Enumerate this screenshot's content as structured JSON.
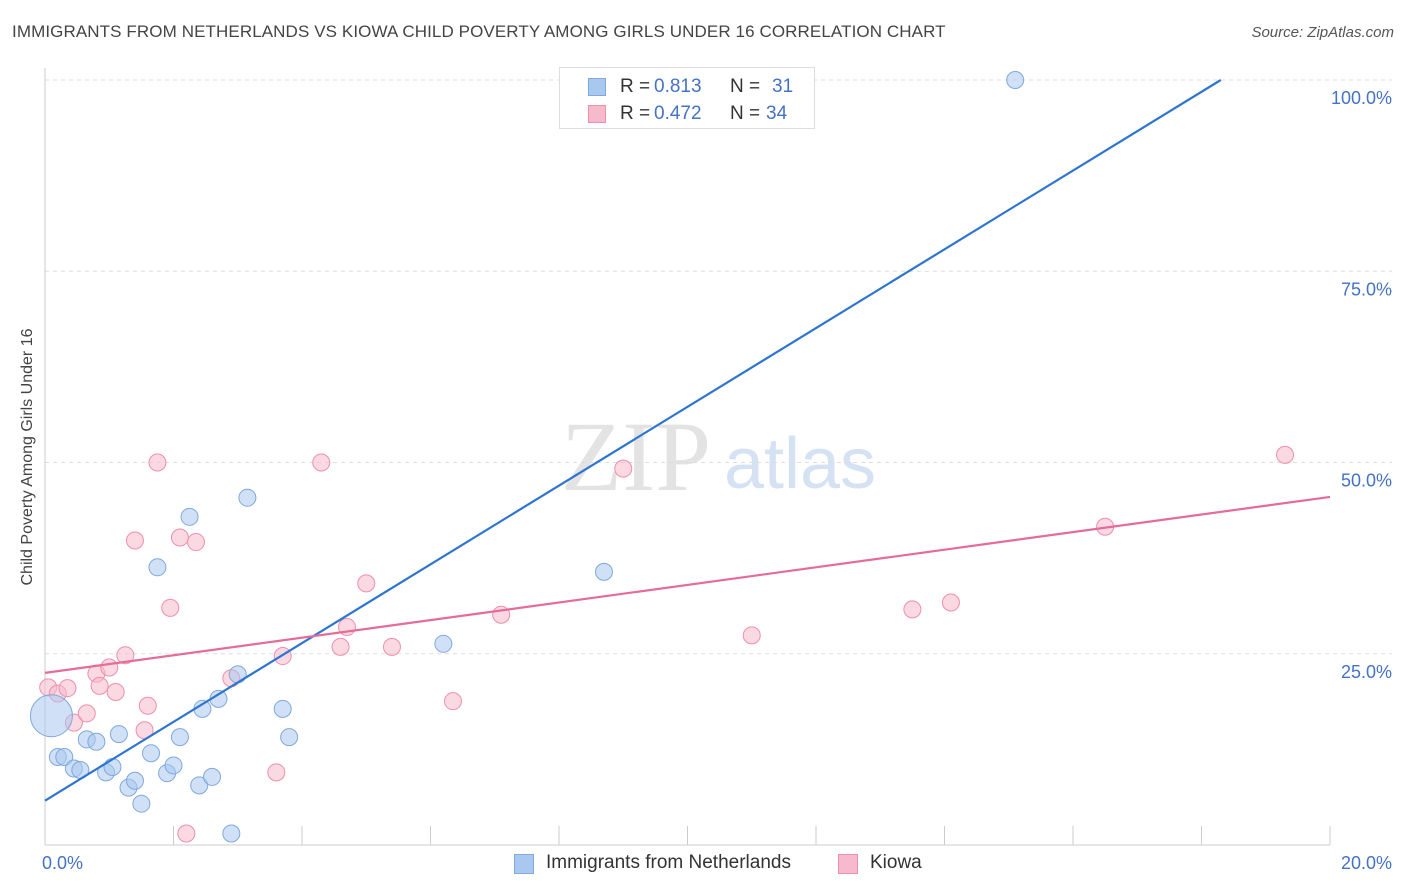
{
  "chart_data": {
    "type": "scatter",
    "title": "IMMIGRANTS FROM NETHERLANDS VS KIOWA CHILD POVERTY AMONG GIRLS UNDER 16 CORRELATION CHART",
    "source": "Source: ZipAtlas.com",
    "watermark": {
      "zip": "ZIP",
      "atlas": "atlas"
    },
    "ylabel": "Child Poverty Among Girls Under 16",
    "xlim": [
      0,
      20
    ],
    "ylim": [
      0,
      100
    ],
    "x_tick_labels": {
      "min": "0.0%",
      "max": "20.0%"
    },
    "y_ticks": [
      {
        "value": 25,
        "label": "25.0%"
      },
      {
        "value": 50,
        "label": "50.0%"
      },
      {
        "value": 75,
        "label": "75.0%"
      },
      {
        "value": 100,
        "label": "100.0%"
      }
    ],
    "grid": true,
    "stats": [
      {
        "r_label": "R =",
        "r": "0.813",
        "n_label": "N =",
        "n": "31"
      },
      {
        "r_label": "R =",
        "r": "0.472",
        "n_label": "N =",
        "n": "34"
      }
    ],
    "series": [
      {
        "name": "Immigrants from Netherlands",
        "color": "#a9c8f0",
        "edge": "#7fa8dc",
        "line_color": "#2e75d0",
        "trend": {
          "x1": 0,
          "y1": 5.8,
          "x2": 18.3,
          "y2": 100
        },
        "points": [
          {
            "x": 0.1,
            "y": 16.9,
            "big": true
          },
          {
            "x": 0.2,
            "y": 11.5
          },
          {
            "x": 0.3,
            "y": 11.5
          },
          {
            "x": 0.45,
            "y": 10.0
          },
          {
            "x": 0.55,
            "y": 9.8
          },
          {
            "x": 0.65,
            "y": 13.8
          },
          {
            "x": 0.8,
            "y": 13.5
          },
          {
            "x": 0.95,
            "y": 9.5
          },
          {
            "x": 1.05,
            "y": 10.2
          },
          {
            "x": 1.15,
            "y": 14.5
          },
          {
            "x": 1.3,
            "y": 7.5
          },
          {
            "x": 1.4,
            "y": 8.4
          },
          {
            "x": 1.5,
            "y": 5.4
          },
          {
            "x": 1.65,
            "y": 12.0
          },
          {
            "x": 1.75,
            "y": 36.3
          },
          {
            "x": 1.9,
            "y": 9.4
          },
          {
            "x": 2.0,
            "y": 10.4
          },
          {
            "x": 2.1,
            "y": 14.1
          },
          {
            "x": 2.25,
            "y": 42.9
          },
          {
            "x": 2.4,
            "y": 7.8
          },
          {
            "x": 2.45,
            "y": 17.8
          },
          {
            "x": 2.6,
            "y": 8.9
          },
          {
            "x": 2.7,
            "y": 19.1
          },
          {
            "x": 2.9,
            "y": 1.5
          },
          {
            "x": 3.0,
            "y": 22.3
          },
          {
            "x": 3.15,
            "y": 45.4
          },
          {
            "x": 3.7,
            "y": 17.8
          },
          {
            "x": 3.8,
            "y": 14.1
          },
          {
            "x": 6.2,
            "y": 26.3
          },
          {
            "x": 8.7,
            "y": 35.7
          },
          {
            "x": 15.1,
            "y": 100.0
          }
        ]
      },
      {
        "name": "Kiowa",
        "color": "#f7b9cc",
        "edge": "#ee8fad",
        "line_color": "#e56b98",
        "trend": {
          "x1": 0,
          "y1": 22.5,
          "x2": 20,
          "y2": 45.5
        },
        "points": [
          {
            "x": 0.05,
            "y": 20.6
          },
          {
            "x": 0.2,
            "y": 19.8
          },
          {
            "x": 0.35,
            "y": 20.5
          },
          {
            "x": 0.45,
            "y": 16.0
          },
          {
            "x": 0.65,
            "y": 17.2
          },
          {
            "x": 0.8,
            "y": 22.4
          },
          {
            "x": 0.85,
            "y": 20.8
          },
          {
            "x": 1.0,
            "y": 23.2
          },
          {
            "x": 1.1,
            "y": 20.0
          },
          {
            "x": 1.25,
            "y": 24.8
          },
          {
            "x": 1.4,
            "y": 39.8
          },
          {
            "x": 1.55,
            "y": 15.0
          },
          {
            "x": 1.6,
            "y": 18.2
          },
          {
            "x": 1.75,
            "y": 50.0
          },
          {
            "x": 1.95,
            "y": 31.0
          },
          {
            "x": 2.1,
            "y": 40.2
          },
          {
            "x": 2.2,
            "y": 1.5
          },
          {
            "x": 2.35,
            "y": 39.6
          },
          {
            "x": 2.9,
            "y": 21.8
          },
          {
            "x": 3.6,
            "y": 9.5
          },
          {
            "x": 3.7,
            "y": 24.7
          },
          {
            "x": 4.3,
            "y": 50.0
          },
          {
            "x": 4.6,
            "y": 25.9
          },
          {
            "x": 4.7,
            "y": 28.5
          },
          {
            "x": 5.0,
            "y": 34.2
          },
          {
            "x": 5.4,
            "y": 25.9
          },
          {
            "x": 6.35,
            "y": 18.8
          },
          {
            "x": 7.1,
            "y": 30.1
          },
          {
            "x": 9.0,
            "y": 49.2
          },
          {
            "x": 11.0,
            "y": 27.4
          },
          {
            "x": 13.5,
            "y": 30.8
          },
          {
            "x": 14.1,
            "y": 31.7
          },
          {
            "x": 16.5,
            "y": 41.6
          },
          {
            "x": 19.3,
            "y": 51.0
          }
        ]
      }
    ]
  }
}
